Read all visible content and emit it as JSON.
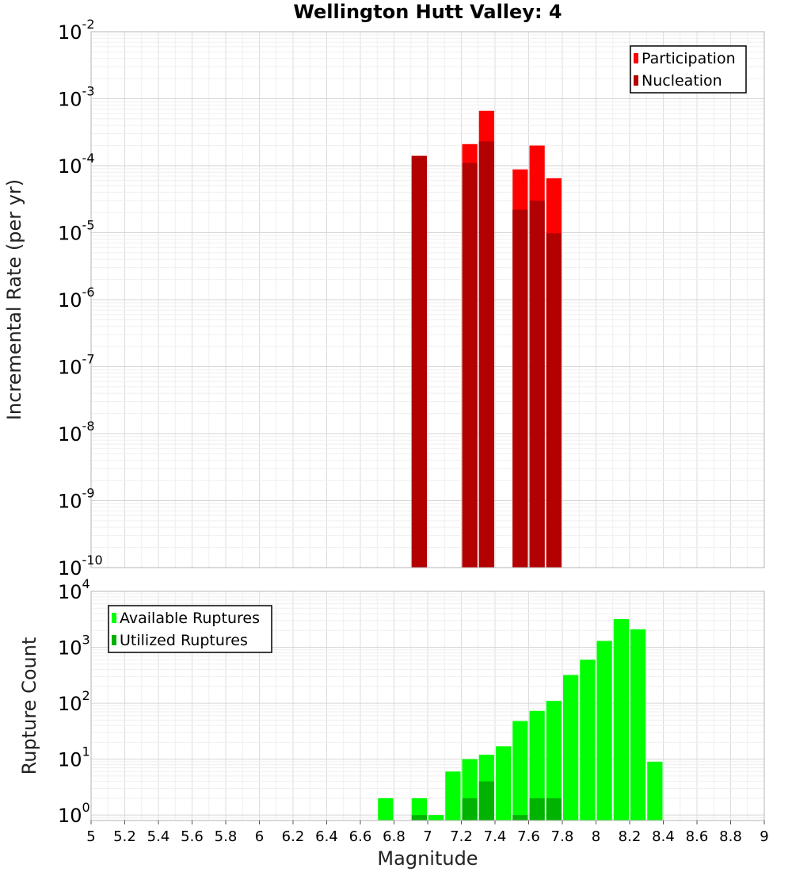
{
  "chart_data": [
    {
      "type": "bar",
      "title": "Wellington Hutt Valley: 4",
      "xlabel": "",
      "ylabel": "Incremental Rate (per yr)",
      "yscale": "log",
      "xlim": [
        5,
        9
      ],
      "ylim": [
        1e-10,
        0.01
      ],
      "y_tick_exponents": [
        -10,
        -9,
        -8,
        -7,
        -6,
        -5,
        -4,
        -3,
        -2
      ],
      "grid": true,
      "legend_position": "top-right",
      "bin_width": 0.1,
      "series": [
        {
          "name": "Participation",
          "color": "#ff0000",
          "x": [
            6.95,
            7.25,
            7.35,
            7.55,
            7.65,
            7.75
          ],
          "values": [
            0.00014,
            0.00021,
            0.00066,
            8.8e-05,
            0.0002,
            6.5e-05
          ]
        },
        {
          "name": "Nucleation",
          "color": "#b30000",
          "x": [
            6.95,
            7.25,
            7.35,
            7.55,
            7.65,
            7.75
          ],
          "values": [
            0.00014,
            0.00011,
            0.00023,
            2.2e-05,
            3e-05,
            9.8e-06
          ]
        }
      ]
    },
    {
      "type": "bar",
      "title": "",
      "xlabel": "Magnitude",
      "ylabel": "Rupture Count",
      "yscale": "log",
      "xlim": [
        5,
        9
      ],
      "ylim": [
        0.8,
        10000
      ],
      "y_tick_exponents": [
        0,
        1,
        2,
        3,
        4
      ],
      "x_tick_labels": [
        "5",
        "5.2",
        "5.4",
        "5.6",
        "5.8",
        "6",
        "6.2",
        "6.4",
        "6.6",
        "6.8",
        "7",
        "7.2",
        "7.4",
        "7.6",
        "7.8",
        "8",
        "8.2",
        "8.4",
        "8.6",
        "8.8",
        "9"
      ],
      "grid": true,
      "legend_position": "top-left",
      "bin_width": 0.1,
      "series": [
        {
          "name": "Available Ruptures",
          "color": "#00ff00",
          "x": [
            6.75,
            6.95,
            7.05,
            7.15,
            7.25,
            7.35,
            7.45,
            7.55,
            7.65,
            7.75,
            7.85,
            7.95,
            8.05,
            8.15,
            8.25,
            8.35
          ],
          "values": [
            2,
            2,
            1,
            6,
            10,
            12,
            17,
            48,
            73,
            110,
            320,
            600,
            1300,
            3200,
            2100,
            9
          ]
        },
        {
          "name": "Utilized Ruptures",
          "color": "#00b300",
          "x": [
            6.95,
            7.25,
            7.35,
            7.55,
            7.65,
            7.75
          ],
          "values": [
            1,
            2,
            4,
            1,
            2,
            2
          ]
        }
      ]
    }
  ]
}
